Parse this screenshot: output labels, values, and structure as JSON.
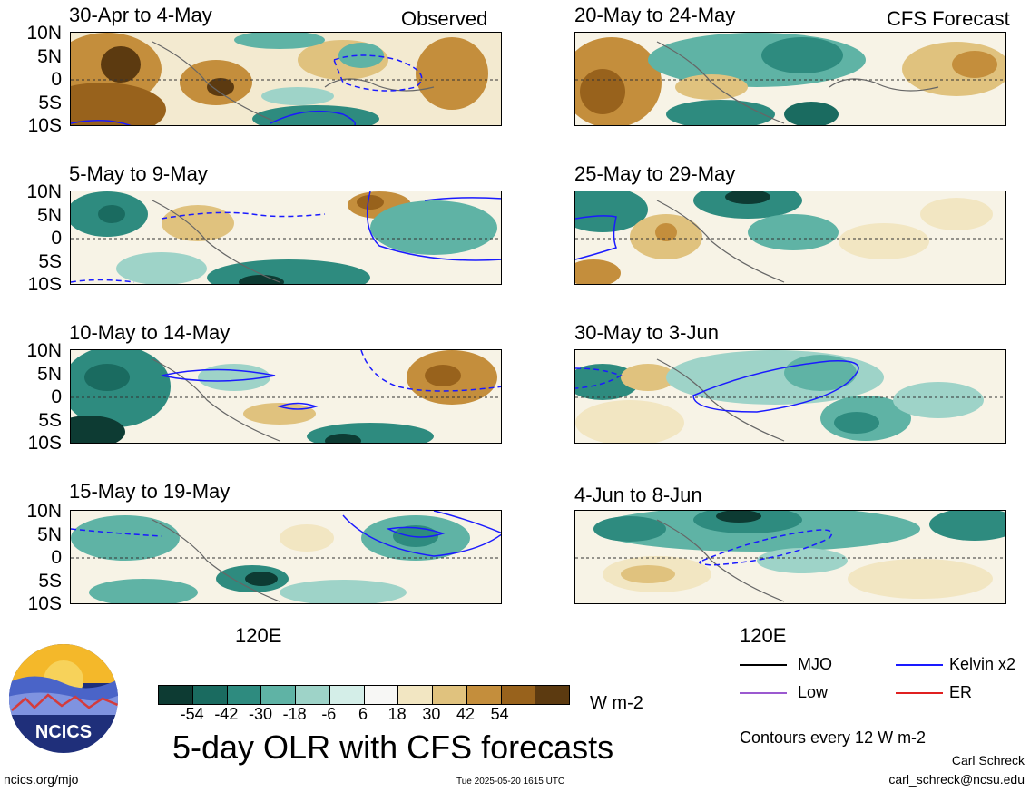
{
  "observed_label": "Observed",
  "forecast_label": "CFS Forecast",
  "lat_labels": [
    "10N",
    "5N",
    "0",
    "5S",
    "10S"
  ],
  "lon_label": "120E",
  "panels_left": [
    {
      "title": "30-Apr to 4-May"
    },
    {
      "title": "5-May to 9-May"
    },
    {
      "title": "10-May to 14-May"
    },
    {
      "title": "15-May to 19-May"
    }
  ],
  "panels_right": [
    {
      "title": "20-May to 24-May"
    },
    {
      "title": "25-May to 29-May"
    },
    {
      "title": "30-May to 3-Jun"
    },
    {
      "title": "4-Jun to 8-Jun"
    }
  ],
  "colorbar": {
    "colors": [
      "#0d3b33",
      "#1a6b60",
      "#2e8b7f",
      "#5fb3a5",
      "#9ed3c8",
      "#d4eee8",
      "#f7f7f5",
      "#f2e6c2",
      "#e0c27e",
      "#c48e3c",
      "#98621c",
      "#5c3a10"
    ],
    "ticks": [
      "-54",
      "-42",
      "-30",
      "-18",
      "-6",
      "6",
      "18",
      "30",
      "42",
      "54"
    ],
    "units": "W m-2"
  },
  "legend": [
    {
      "label": "MJO",
      "color": "#000000"
    },
    {
      "label": "Kelvin x2",
      "color": "#1a1aff"
    },
    {
      "label": "Low",
      "color": "#9b59d0"
    },
    {
      "label": "ER",
      "color": "#e02020"
    }
  ],
  "contours_note": "Contours every 12 W m-2",
  "main_title": "5-day OLR with CFS forecasts",
  "logo_text": "NCICS",
  "footer_left": "ncics.org/mjo",
  "footer_center": "Tue 2025-05-20 1615 UTC",
  "author": "Carl Schreck",
  "email": "carl_schreck@ncsu.edu"
}
